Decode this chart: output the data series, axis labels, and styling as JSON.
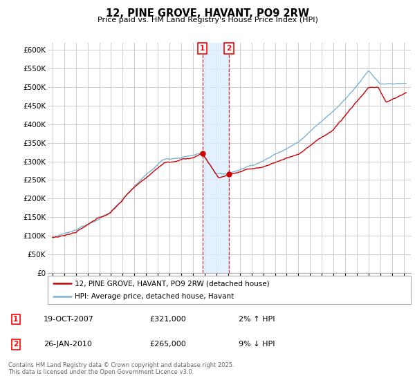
{
  "title": "12, PINE GROVE, HAVANT, PO9 2RW",
  "subtitle": "Price paid vs. HM Land Registry's House Price Index (HPI)",
  "ylabel_ticks": [
    0,
    50000,
    100000,
    150000,
    200000,
    250000,
    300000,
    350000,
    400000,
    450000,
    500000,
    550000,
    600000
  ],
  "ylim": [
    0,
    620000
  ],
  "xlim_start": 1994.6,
  "xlim_end": 2025.6,
  "sale1_year": 2007.8,
  "sale1_price": 321000,
  "sale2_year": 2010.07,
  "sale2_price": 265000,
  "line_color_red": "#cc0000",
  "line_color_blue": "#7ab3d4",
  "shade_color": "#ddeeff",
  "legend_label_red": "12, PINE GROVE, HAVANT, PO9 2RW (detached house)",
  "legend_label_blue": "HPI: Average price, detached house, Havant",
  "table_row1": [
    "1",
    "19-OCT-2007",
    "£321,000",
    "2% ↑ HPI"
  ],
  "table_row2": [
    "2",
    "26-JAN-2010",
    "£265,000",
    "9% ↓ HPI"
  ],
  "footnote": "Contains HM Land Registry data © Crown copyright and database right 2025.\nThis data is licensed under the Open Government Licence v3.0.",
  "background_color": "#ffffff",
  "grid_color": "#cccccc"
}
